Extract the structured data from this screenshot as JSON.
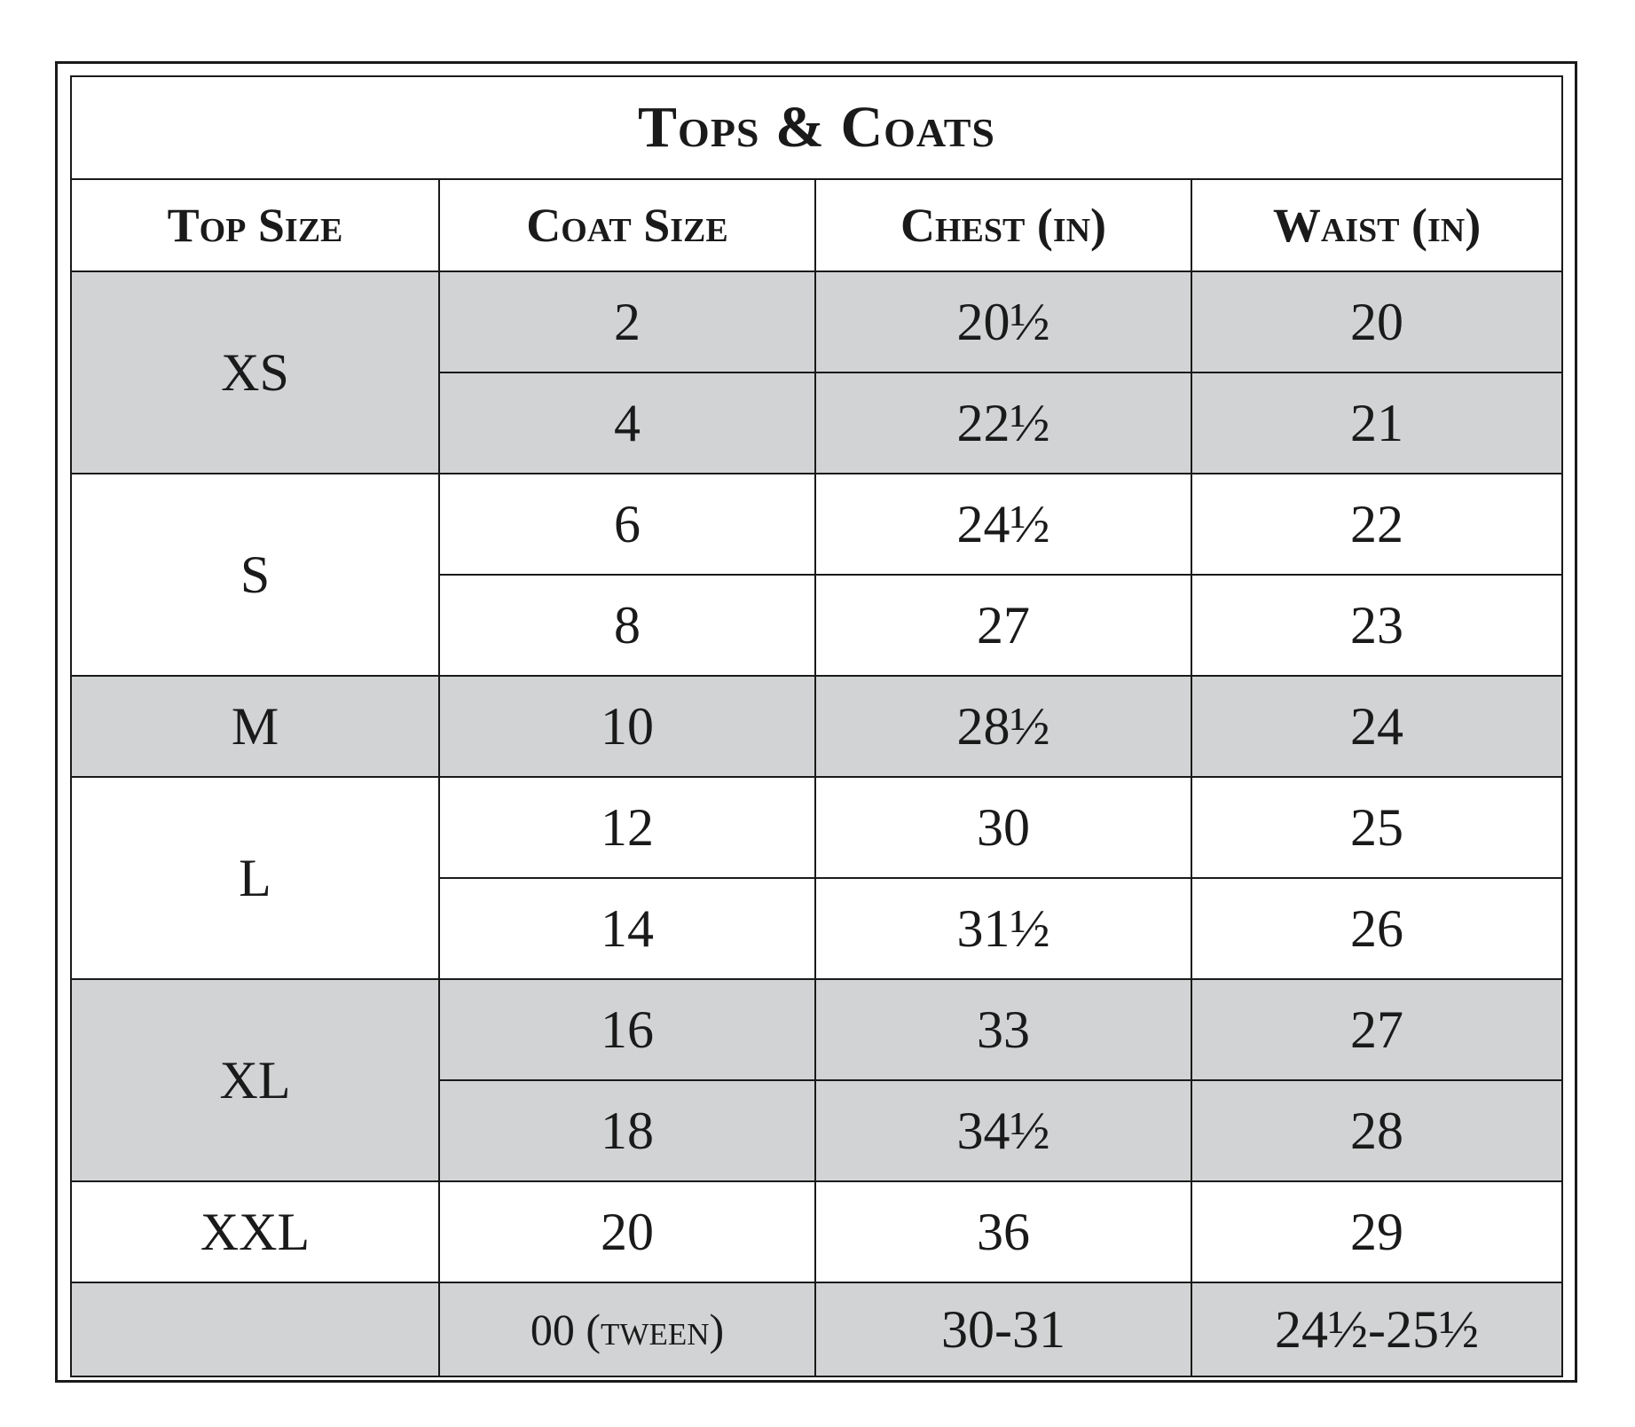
{
  "title": "Tops & Coats",
  "headers": [
    "Top Size",
    "Coat Size",
    "Chest (in)",
    "Waist (in)"
  ],
  "shade_color": "#d1d3d4",
  "groups": [
    {
      "top_size": "XS",
      "shaded": true,
      "rows": [
        {
          "coat": "2",
          "chest": "20½",
          "waist": "20"
        },
        {
          "coat": "4",
          "chest": "22½",
          "waist": "21"
        }
      ]
    },
    {
      "top_size": "S",
      "shaded": false,
      "rows": [
        {
          "coat": "6",
          "chest": "24½",
          "waist": "22"
        },
        {
          "coat": "8",
          "chest": "27",
          "waist": "23"
        }
      ]
    },
    {
      "top_size": "M",
      "shaded": true,
      "rows": [
        {
          "coat": "10",
          "chest": "28½",
          "waist": "24"
        }
      ]
    },
    {
      "top_size": "L",
      "shaded": false,
      "rows": [
        {
          "coat": "12",
          "chest": "30",
          "waist": "25"
        },
        {
          "coat": "14",
          "chest": "31½",
          "waist": "26"
        }
      ]
    },
    {
      "top_size": "XL",
      "shaded": true,
      "rows": [
        {
          "coat": "16",
          "chest": "33",
          "waist": "27"
        },
        {
          "coat": "18",
          "chest": "34½",
          "waist": "28"
        }
      ]
    },
    {
      "top_size": "XXL",
      "shaded": false,
      "rows": [
        {
          "coat": "20",
          "chest": "36",
          "waist": "29"
        }
      ]
    },
    {
      "top_size": "",
      "shaded": true,
      "rows": [
        {
          "coat": "00 (tween)",
          "chest": "30-31",
          "waist": "24½-25½"
        }
      ]
    }
  ]
}
